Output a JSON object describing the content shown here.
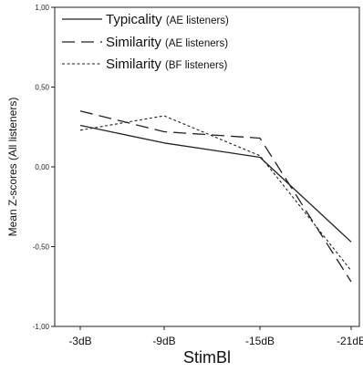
{
  "chart_data": {
    "type": "line",
    "categories": [
      "-3dB",
      "-9dB",
      "-15dB",
      "-21dB"
    ],
    "xlabel": "StimBl",
    "ylabel": "Mean Z-scores (All listeners)",
    "ylim": [
      -1.0,
      1.0
    ],
    "yticks": [
      -1.0,
      -0.5,
      0.0,
      0.5,
      1.0
    ],
    "ytick_labels": [
      "-1,00",
      "-0,50",
      "0,00",
      "0,50",
      "1,00"
    ],
    "grid": false,
    "legend_position": "top-left",
    "series": [
      {
        "name": "Typicality",
        "name_suffix": "(AE listeners)",
        "style": "solid",
        "color": "#222222",
        "values": [
          0.26,
          0.15,
          0.06,
          -0.47
        ]
      },
      {
        "name": "Similarity",
        "name_suffix": "(AE listeners)",
        "style": "dashed",
        "color": "#222222",
        "values": [
          0.35,
          0.22,
          0.18,
          -0.72
        ]
      },
      {
        "name": "Similarity",
        "name_suffix": "(BF listeners)",
        "style": "dotted",
        "color": "#222222",
        "values": [
          0.23,
          0.32,
          0.07,
          -0.65
        ]
      }
    ]
  }
}
